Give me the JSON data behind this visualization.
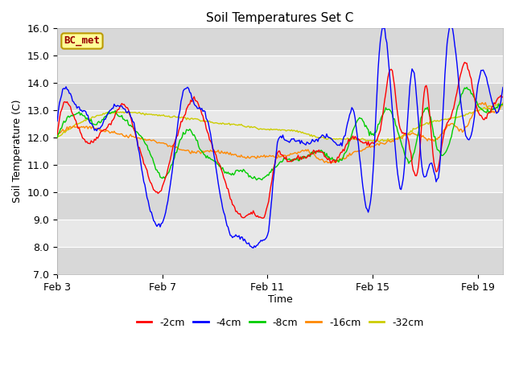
{
  "title": "Soil Temperatures Set C",
  "xlabel": "Time",
  "ylabel": "Soil Temperature (C)",
  "ylim": [
    7.0,
    16.0
  ],
  "yticks": [
    7.0,
    8.0,
    9.0,
    10.0,
    11.0,
    12.0,
    13.0,
    14.0,
    15.0,
    16.0
  ],
  "xtick_labels": [
    "Feb 3",
    "Feb 7",
    "Feb 11",
    "Feb 15",
    "Feb 19"
  ],
  "xtick_positions": [
    0,
    96,
    192,
    288,
    384
  ],
  "n_points": 408,
  "label_box_text": "BC_met",
  "label_box_facecolor": "#ffff99",
  "label_box_edgecolor": "#bb9900",
  "label_box_textcolor": "#990000",
  "line_colors": [
    "#ff0000",
    "#0000ff",
    "#00cc00",
    "#ff8800",
    "#cccc00"
  ],
  "line_labels": [
    "-2cm",
    "-4cm",
    "-8cm",
    "-16cm",
    "-32cm"
  ],
  "line_width": 1.0,
  "fig_facecolor": "#f0f0f0",
  "plot_bg_color": "#e0e0e0",
  "band_light": "#e8e8e8",
  "band_dark": "#d8d8d8",
  "grid_color": "#ffffff",
  "title_fontsize": 11,
  "axis_label_fontsize": 9,
  "tick_fontsize": 9,
  "legend_fontsize": 9
}
